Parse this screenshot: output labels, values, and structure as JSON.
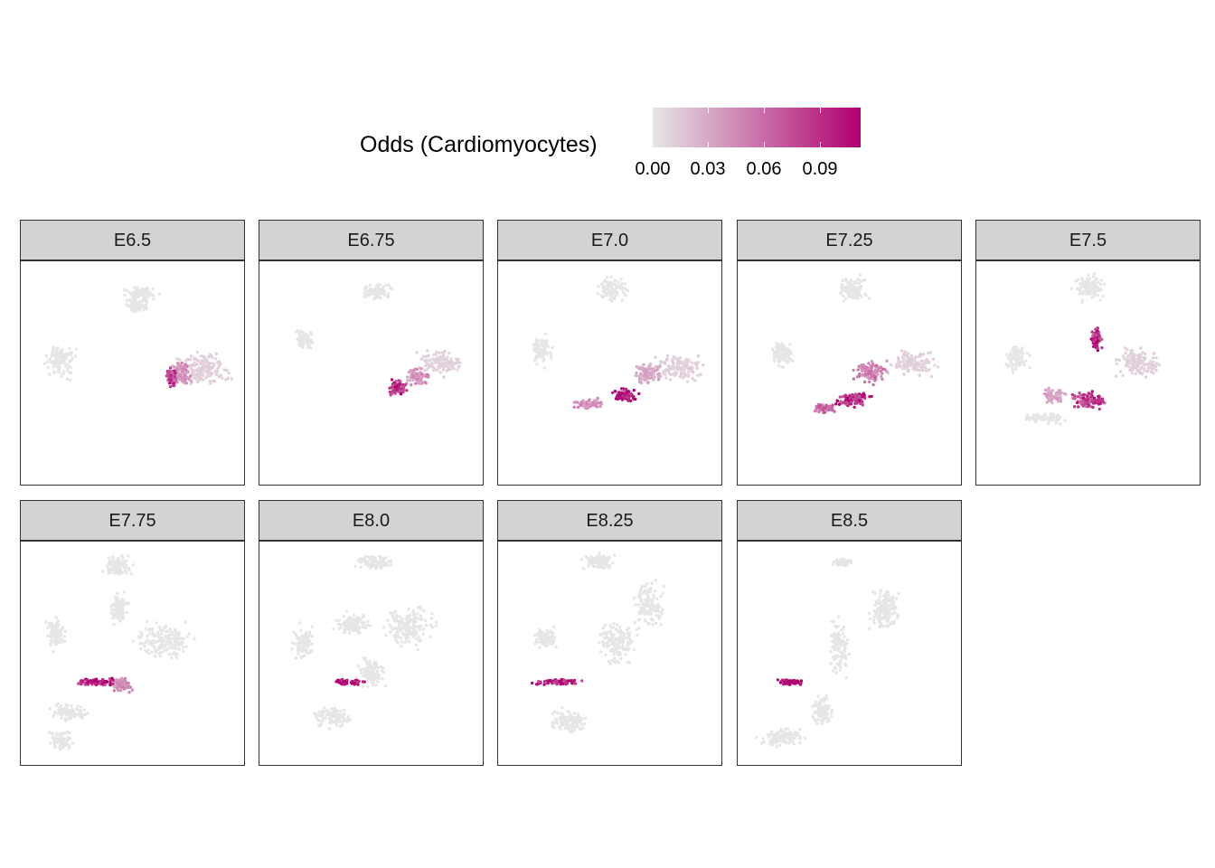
{
  "chart_data": {
    "type": "scatter",
    "legend": {
      "title": "Odds (Cardiomyocytes)",
      "placement": "top",
      "ticks": [
        "0.00",
        "0.03",
        "0.06",
        "0.09"
      ],
      "range": [
        0,
        0.11
      ],
      "colors": {
        "low": "#e6e6e6",
        "high": "#b0006f"
      }
    },
    "facets": [
      {
        "label": "E6.5",
        "stage": "e65",
        "clusters": [
          {
            "x": 0.6,
            "y": 3.8,
            "w": 0.9,
            "h": 0.35,
            "odds": 0.0
          },
          {
            "x": 0.4,
            "y": 3.3,
            "w": 0.6,
            "h": 0.3,
            "odds": 0.0
          },
          {
            "x": -2.8,
            "y": 0.9,
            "w": 0.8,
            "h": 1.0,
            "odds": 0.0
          },
          {
            "x": 3.2,
            "y": 0.5,
            "w": 1.5,
            "h": 0.9,
            "odds": 0.01
          },
          {
            "x": 2.3,
            "y": 0.3,
            "w": 0.6,
            "h": 0.7,
            "odds": 0.04
          },
          {
            "x": 1.9,
            "y": 0.2,
            "w": 0.25,
            "h": 0.5,
            "odds": 0.08
          }
        ]
      },
      {
        "label": "E6.75",
        "stage": "e675",
        "clusters": [
          {
            "x": 0.5,
            "y": 3.9,
            "w": 0.8,
            "h": 0.4,
            "odds": 0.0
          },
          {
            "x": -2.6,
            "y": 1.8,
            "w": 0.5,
            "h": 0.6,
            "odds": 0.0
          },
          {
            "x": 3.2,
            "y": 0.8,
            "w": 1.2,
            "h": 0.7,
            "odds": 0.01
          },
          {
            "x": 2.2,
            "y": 0.2,
            "w": 0.6,
            "h": 0.5,
            "odds": 0.04
          },
          {
            "x": 1.4,
            "y": -0.3,
            "w": 0.5,
            "h": 0.4,
            "odds": 0.09
          }
        ]
      },
      {
        "label": "E7.0",
        "stage": "e70",
        "clusters": [
          {
            "x": 0.4,
            "y": 4.0,
            "w": 0.8,
            "h": 0.7,
            "odds": 0.0
          },
          {
            "x": -2.7,
            "y": 1.3,
            "w": 0.6,
            "h": 0.8,
            "odds": 0.0
          },
          {
            "x": 3.2,
            "y": 0.6,
            "w": 1.4,
            "h": 0.7,
            "odds": 0.01
          },
          {
            "x": 1.9,
            "y": 0.3,
            "w": 0.8,
            "h": 0.6,
            "odds": 0.03
          },
          {
            "x": 0.9,
            "y": -0.6,
            "w": 0.7,
            "h": 0.35,
            "odds": 0.1
          },
          {
            "x": -0.6,
            "y": -1.0,
            "w": 0.9,
            "h": 0.3,
            "odds": 0.04
          }
        ]
      },
      {
        "label": "E7.25",
        "stage": "e725",
        "clusters": [
          {
            "x": 0.4,
            "y": 4.0,
            "w": 0.8,
            "h": 0.7,
            "odds": 0.0
          },
          {
            "x": -2.6,
            "y": 1.2,
            "w": 0.6,
            "h": 0.8,
            "odds": 0.0
          },
          {
            "x": 2.9,
            "y": 0.8,
            "w": 1.3,
            "h": 0.7,
            "odds": 0.01
          },
          {
            "x": 1.1,
            "y": 0.4,
            "w": 0.9,
            "h": 0.6,
            "odds": 0.05
          },
          {
            "x": 0.4,
            "y": -0.8,
            "w": 1.0,
            "h": 0.4,
            "odds": 0.09
          },
          {
            "x": -0.8,
            "y": -1.2,
            "w": 0.6,
            "h": 0.25,
            "odds": 0.06
          }
        ]
      },
      {
        "label": "E7.5",
        "stage": "e75",
        "clusters": [
          {
            "x": 0.3,
            "y": 4.1,
            "w": 0.9,
            "h": 0.8,
            "odds": 0.0
          },
          {
            "x": -2.8,
            "y": 1.0,
            "w": 0.6,
            "h": 0.8,
            "odds": 0.0
          },
          {
            "x": 2.4,
            "y": 0.8,
            "w": 1.3,
            "h": 0.8,
            "odds": 0.01
          },
          {
            "x": 0.6,
            "y": 1.8,
            "w": 0.3,
            "h": 0.6,
            "odds": 0.09
          },
          {
            "x": 0.3,
            "y": -0.9,
            "w": 1.0,
            "h": 0.5,
            "odds": 0.08
          },
          {
            "x": -1.6,
            "y": -1.6,
            "w": 1.1,
            "h": 0.3,
            "odds": 0.0
          },
          {
            "x": -1.2,
            "y": -0.6,
            "w": 0.6,
            "h": 0.4,
            "odds": 0.03
          }
        ]
      },
      {
        "label": "E7.75",
        "stage": "e775",
        "clusters": [
          {
            "x": -0.3,
            "y": 4.1,
            "w": 0.8,
            "h": 0.6,
            "odds": 0.0
          },
          {
            "x": -3.0,
            "y": 1.2,
            "w": 0.5,
            "h": 0.9,
            "odds": 0.0
          },
          {
            "x": 1.6,
            "y": 0.9,
            "w": 1.6,
            "h": 1.0,
            "odds": 0.0
          },
          {
            "x": -0.3,
            "y": 2.3,
            "w": 0.5,
            "h": 0.9,
            "odds": 0.0
          },
          {
            "x": -1.4,
            "y": -0.9,
            "w": 1.1,
            "h": 0.2,
            "odds": 0.1
          },
          {
            "x": -0.2,
            "y": -1.0,
            "w": 0.5,
            "h": 0.4,
            "odds": 0.04
          },
          {
            "x": -2.4,
            "y": -2.2,
            "w": 1.0,
            "h": 0.5,
            "odds": 0.0
          },
          {
            "x": -2.8,
            "y": -3.4,
            "w": 0.6,
            "h": 0.6,
            "odds": 0.0
          }
        ]
      },
      {
        "label": "E8.0",
        "stage": "e80",
        "clusters": [
          {
            "x": 0.4,
            "y": 4.3,
            "w": 1.0,
            "h": 0.4,
            "odds": 0.0
          },
          {
            "x": 1.9,
            "y": 1.5,
            "w": 1.3,
            "h": 1.2,
            "odds": 0.0
          },
          {
            "x": -0.5,
            "y": 1.6,
            "w": 1.0,
            "h": 0.6,
            "odds": 0.0
          },
          {
            "x": -2.6,
            "y": 0.8,
            "w": 0.6,
            "h": 0.9,
            "odds": 0.0
          },
          {
            "x": 0.3,
            "y": -0.5,
            "w": 0.8,
            "h": 0.8,
            "odds": 0.0
          },
          {
            "x": -0.7,
            "y": -0.9,
            "w": 0.8,
            "h": 0.15,
            "odds": 0.1
          },
          {
            "x": -1.4,
            "y": -2.4,
            "w": 1.0,
            "h": 0.6,
            "odds": 0.0
          }
        ]
      },
      {
        "label": "E8.25",
        "stage": "e825",
        "clusters": [
          {
            "x": -0.2,
            "y": 4.3,
            "w": 0.9,
            "h": 0.5,
            "odds": 0.0
          },
          {
            "x": 1.9,
            "y": 2.4,
            "w": 0.8,
            "h": 1.3,
            "odds": 0.0
          },
          {
            "x": 0.6,
            "y": 0.8,
            "w": 1.0,
            "h": 1.2,
            "odds": 0.0
          },
          {
            "x": -2.5,
            "y": 1.0,
            "w": 0.6,
            "h": 0.6,
            "odds": 0.0
          },
          {
            "x": -2.0,
            "y": -0.9,
            "w": 1.4,
            "h": 0.15,
            "odds": 0.1
          },
          {
            "x": -1.5,
            "y": -2.6,
            "w": 1.1,
            "h": 0.7,
            "odds": 0.0
          }
        ]
      },
      {
        "label": "E8.5",
        "stage": "e85",
        "clusters": [
          {
            "x": 0.0,
            "y": 4.3,
            "w": 0.6,
            "h": 0.2,
            "odds": 0.0
          },
          {
            "x": 1.8,
            "y": 2.2,
            "w": 0.9,
            "h": 1.2,
            "odds": 0.0
          },
          {
            "x": -0.2,
            "y": 0.6,
            "w": 0.5,
            "h": 1.5,
            "odds": 0.0
          },
          {
            "x": -2.2,
            "y": -0.9,
            "w": 0.7,
            "h": 0.15,
            "odds": 0.11
          },
          {
            "x": -2.6,
            "y": -3.3,
            "w": 1.2,
            "h": 0.5,
            "odds": 0.0
          },
          {
            "x": -0.9,
            "y": -2.2,
            "w": 0.6,
            "h": 0.8,
            "odds": 0.0
          }
        ]
      },
      {
        "label": "",
        "stage": "",
        "clusters": []
      }
    ]
  }
}
